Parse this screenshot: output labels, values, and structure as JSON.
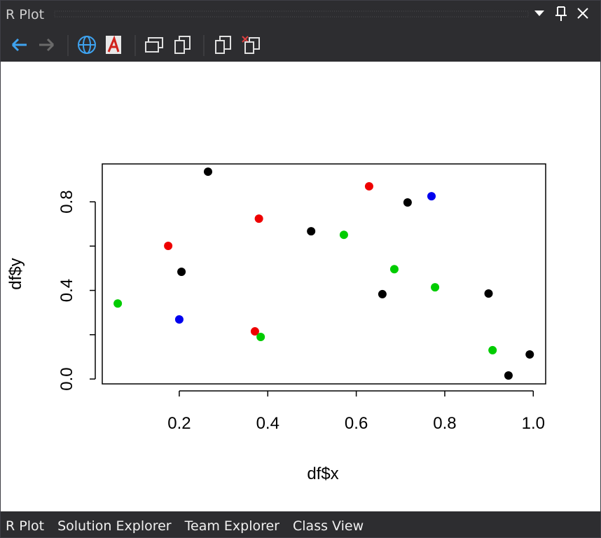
{
  "window": {
    "title": "R Plot"
  },
  "tabs": [
    "R Plot",
    "Solution Explorer",
    "Team Explorer",
    "Class View"
  ],
  "chart_data": {
    "type": "scatter",
    "xlabel": "df$x",
    "ylabel": "df$y",
    "x": [
      0.265,
      0.205,
      0.498,
      0.716,
      0.659,
      0.899,
      0.944,
      0.992,
      0.175,
      0.38,
      0.371,
      0.629,
      0.2,
      0.77,
      0.061,
      0.384,
      0.572,
      0.686,
      0.778,
      0.908
    ],
    "values": [
      0.936,
      0.484,
      0.667,
      0.797,
      0.383,
      0.386,
      0.016,
      0.111,
      0.601,
      0.724,
      0.215,
      0.87,
      0.269,
      0.825,
      0.341,
      0.19,
      0.651,
      0.496,
      0.414,
      0.13
    ],
    "colors": [
      "#000000",
      "#000000",
      "#000000",
      "#000000",
      "#000000",
      "#000000",
      "#000000",
      "#000000",
      "#ee0000",
      "#ee0000",
      "#ee0000",
      "#ee0000",
      "#0000ee",
      "#0000ee",
      "#00cc00",
      "#00cc00",
      "#00cc00",
      "#00cc00",
      "#00cc00",
      "#00cc00"
    ],
    "xlim": [
      0.026,
      1.028
    ],
    "ylim": [
      -0.022,
      0.971
    ],
    "xticks": [
      0.2,
      0.4,
      0.6,
      0.8,
      {
        "value": 1,
        "label": "1.0"
      }
    ],
    "yticks": [
      {
        "value": 0,
        "label": "0.0"
      },
      0.4,
      0.8
    ],
    "yticks_unlabeled": [
      0.2,
      0.6
    ]
  }
}
